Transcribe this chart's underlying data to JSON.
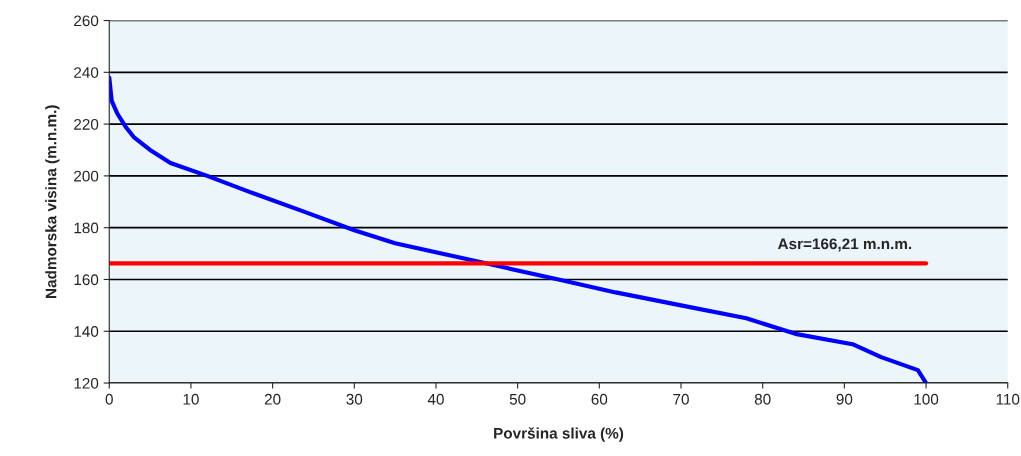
{
  "chart_data": {
    "type": "line",
    "xlabel": "Površina sliva (%)",
    "ylabel": "Nadmorska visina (m.n.m.)",
    "xlim": [
      0,
      110
    ],
    "xticks": [
      0,
      10,
      20,
      30,
      40,
      50,
      60,
      70,
      80,
      90,
      100,
      110
    ],
    "ylim": [
      120,
      260
    ],
    "yticks": [
      120,
      140,
      160,
      180,
      200,
      220,
      240,
      260
    ],
    "grid": "y",
    "legend": false,
    "series": [
      {
        "color": "#0000ff",
        "x": [
          0,
          0.3,
          1,
          2,
          3,
          5,
          7.5,
          12,
          17,
          24,
          30,
          35,
          45,
          55,
          62,
          70,
          78,
          84,
          91,
          94.5,
          99,
          100
        ],
        "values": [
          238,
          229,
          224,
          219,
          215,
          210,
          205,
          200,
          194,
          186,
          179,
          174,
          167,
          160,
          155,
          150,
          145,
          139,
          135,
          130,
          125,
          120
        ]
      },
      {
        "name": "Asr=166,21 m.n.m.",
        "color": "#ff0000",
        "x": [
          0,
          100
        ],
        "values": [
          166.21,
          166.21
        ]
      }
    ]
  }
}
